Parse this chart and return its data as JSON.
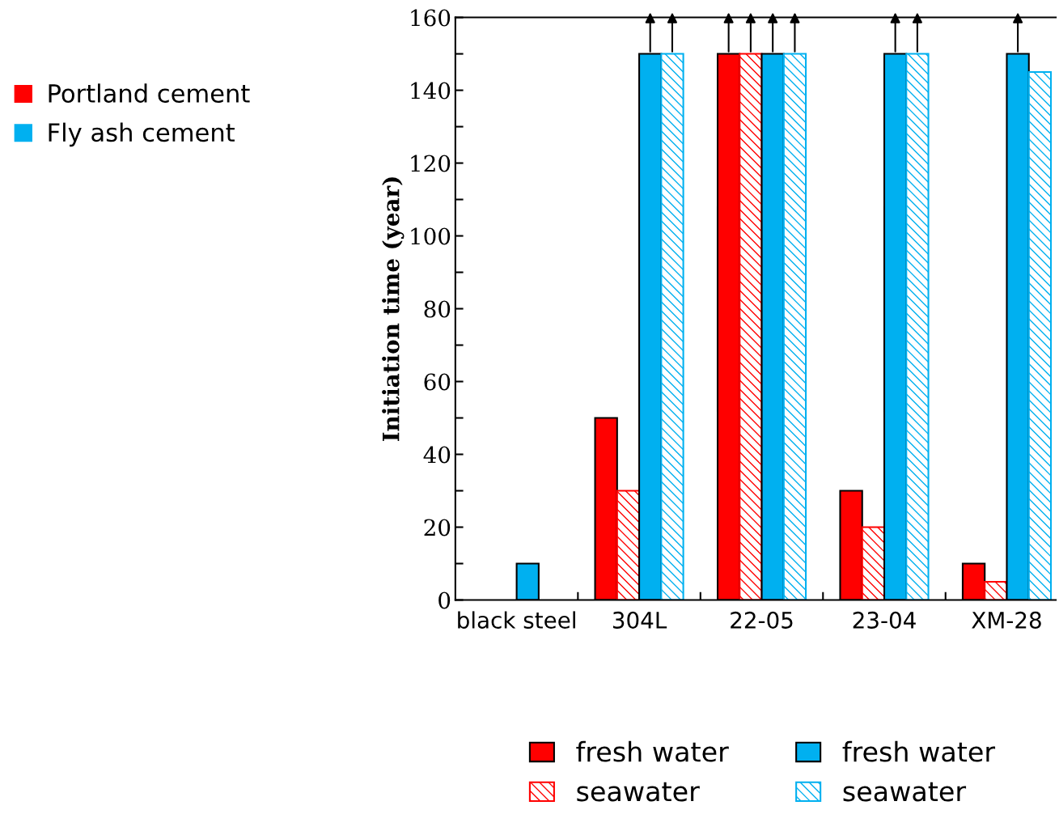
{
  "chart_data": {
    "type": "bar",
    "ylabel": "Initiation time (year)",
    "categories": [
      "black steel",
      "304L",
      "22-05",
      "23-04",
      "XM-28"
    ],
    "series": [
      {
        "name": "fresh water",
        "color": "#ff0000",
        "values": [
          null,
          50,
          150,
          30,
          10
        ]
      },
      {
        "name": "seawater",
        "color": "#ff0000",
        "values": [
          null,
          30,
          150,
          20,
          5
        ]
      },
      {
        "name": "fresh water",
        "color": "#00b0f0",
        "values": [
          10,
          150,
          150,
          150,
          150
        ]
      },
      {
        "name": "seawater",
        "color": "#00b0f0",
        "values": [
          null,
          150,
          150,
          150,
          145
        ]
      }
    ],
    "annotations": [
      "Portland cement",
      "Fly ash cement"
    ],
    "ylim": [
      0,
      160
    ],
    "yticks": [
      0,
      20,
      40,
      60,
      80,
      100,
      120,
      140,
      160
    ],
    "grid": false,
    "legend": "bottom"
  }
}
